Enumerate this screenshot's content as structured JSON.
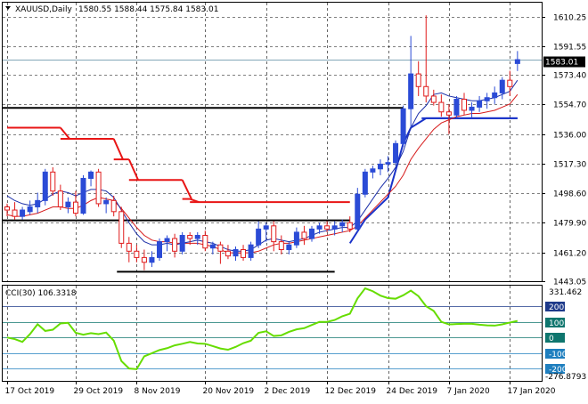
{
  "header": {
    "symbol": "XAUUSD,Daily",
    "ohlc": "1580.55 1588.44 1575.84 1583.01",
    "current_price": "1583.01"
  },
  "indicator": {
    "label": "CCI(30) 106.3318",
    "scale_max_label": "331.462",
    "scale_min_label": "-276.8793",
    "levels": [
      200,
      100,
      0,
      -100,
      -200
    ],
    "level_colors": {
      "200": "#1e3a8a",
      "100": "#0f766e",
      "0": "#0f766e",
      "-100": "#1f7fbf",
      "-200": "#1f7fbf"
    }
  },
  "colors": {
    "bull": "#2b4bd6",
    "bear": "#e01b1b",
    "ma_blue": "#1a2ea8",
    "ma_red": "#d61b1b",
    "stop_red": "#e81515",
    "stop_blue": "#1a33c9",
    "levels": "#000000",
    "cci": "#66dd00",
    "grid": "#000000",
    "price_line": "#5a8aa0"
  },
  "chart_data": {
    "type": "candlestick",
    "title": "XAUUSD,Daily",
    "y_ticks": [
      1610.25,
      1591.55,
      1573.4,
      1554.7,
      1536.0,
      1517.3,
      1498.6,
      1479.9,
      1461.2,
      1443.05
    ],
    "y_tick_labels": [
      "1610.25",
      "1591.55",
      "1573.40",
      "1554.70",
      "1536.00",
      "1517.30",
      "1498.60",
      "1479.90",
      "1461.20",
      "1443.05"
    ],
    "ylim": [
      1443.05,
      1619.0
    ],
    "x_labels": [
      {
        "i": 0,
        "label": "17 Oct 2019"
      },
      {
        "i": 9,
        "label": "29 Oct 2019"
      },
      {
        "i": 17,
        "label": "8 Nov 2019"
      },
      {
        "i": 26,
        "label": "20 Nov 2019"
      },
      {
        "i": 34,
        "label": "2 Dec 2019"
      },
      {
        "i": 42,
        "label": "12 Dec 2019"
      },
      {
        "i": 50,
        "label": "24 Dec 2019"
      },
      {
        "i": 58,
        "label": "7 Jan 2020"
      },
      {
        "i": 66,
        "label": "17 Jan 2020"
      }
    ],
    "candles": [
      [
        1490,
        1492,
        1484,
        1488
      ],
      [
        1488,
        1493,
        1482,
        1484
      ],
      [
        1484,
        1490,
        1482,
        1488
      ],
      [
        1487,
        1494,
        1485,
        1490
      ],
      [
        1490,
        1499,
        1486,
        1494
      ],
      [
        1494,
        1514,
        1491,
        1512
      ],
      [
        1512,
        1515,
        1497,
        1500
      ],
      [
        1500,
        1504,
        1488,
        1490
      ],
      [
        1490,
        1496,
        1486,
        1493
      ],
      [
        1493,
        1500,
        1484,
        1486
      ],
      [
        1486,
        1510,
        1485,
        1508
      ],
      [
        1508,
        1513,
        1503,
        1512
      ],
      [
        1512,
        1514,
        1490,
        1492
      ],
      [
        1492,
        1496,
        1486,
        1494
      ],
      [
        1494,
        1497,
        1484,
        1487
      ],
      [
        1487,
        1490,
        1464,
        1467
      ],
      [
        1467,
        1471,
        1455,
        1462
      ],
      [
        1462,
        1466,
        1455,
        1458
      ],
      [
        1458,
        1463,
        1450,
        1455
      ],
      [
        1455,
        1462,
        1452,
        1458
      ],
      [
        1458,
        1470,
        1456,
        1468
      ],
      [
        1468,
        1472,
        1462,
        1470
      ],
      [
        1470,
        1473,
        1458,
        1462
      ],
      [
        1462,
        1474,
        1460,
        1472
      ],
      [
        1472,
        1474,
        1466,
        1470
      ],
      [
        1470,
        1474,
        1466,
        1472
      ],
      [
        1472,
        1475,
        1462,
        1464
      ],
      [
        1464,
        1468,
        1460,
        1466
      ],
      [
        1466,
        1468,
        1454,
        1462
      ],
      [
        1462,
        1466,
        1457,
        1459
      ],
      [
        1459,
        1465,
        1456,
        1463
      ],
      [
        1463,
        1466,
        1456,
        1458
      ],
      [
        1458,
        1468,
        1456,
        1466
      ],
      [
        1466,
        1481,
        1464,
        1476
      ],
      [
        1476,
        1480,
        1468,
        1478
      ],
      [
        1478,
        1481,
        1462,
        1468
      ],
      [
        1468,
        1472,
        1460,
        1463
      ],
      [
        1463,
        1468,
        1460,
        1466
      ],
      [
        1466,
        1477,
        1464,
        1474
      ],
      [
        1474,
        1478,
        1466,
        1470
      ],
      [
        1470,
        1478,
        1468,
        1476
      ],
      [
        1476,
        1480,
        1473,
        1478
      ],
      [
        1478,
        1481,
        1474,
        1476
      ],
      [
        1476,
        1481,
        1472,
        1478
      ],
      [
        1478,
        1482,
        1474,
        1480
      ],
      [
        1480,
        1484,
        1474,
        1476
      ],
      [
        1476,
        1502,
        1474,
        1498
      ],
      [
        1498,
        1514,
        1496,
        1512
      ],
      [
        1512,
        1516,
        1508,
        1514
      ],
      [
        1514,
        1520,
        1510,
        1517
      ],
      [
        1517,
        1522,
        1512,
        1518
      ],
      [
        1518,
        1532,
        1516,
        1530
      ],
      [
        1530,
        1554,
        1528,
        1552
      ],
      [
        1552,
        1598,
        1540,
        1574
      ],
      [
        1574,
        1582,
        1560,
        1566
      ],
      [
        1566,
        1611,
        1556,
        1560
      ],
      [
        1560,
        1564,
        1554,
        1556
      ],
      [
        1556,
        1561,
        1547,
        1550
      ],
      [
        1550,
        1555,
        1536,
        1548
      ],
      [
        1548,
        1560,
        1546,
        1558
      ],
      [
        1558,
        1562,
        1548,
        1551
      ],
      [
        1551,
        1556,
        1546,
        1553
      ],
      [
        1553,
        1560,
        1550,
        1557
      ],
      [
        1557,
        1562,
        1552,
        1559
      ],
      [
        1559,
        1566,
        1555,
        1562
      ],
      [
        1562,
        1572,
        1558,
        1570
      ],
      [
        1570,
        1576,
        1560,
        1566
      ],
      [
        1580.55,
        1588.44,
        1575.84,
        1583.01
      ]
    ],
    "ma_fast": [
      1497,
      1494,
      1492,
      1491,
      1492,
      1495,
      1498,
      1500,
      1499,
      1497,
      1499,
      1501,
      1501,
      1500,
      1496,
      1488,
      1480,
      1473,
      1468,
      1466,
      1466,
      1467,
      1466,
      1467,
      1468,
      1469,
      1468,
      1467,
      1465,
      1463,
      1462,
      1462,
      1463,
      1466,
      1469,
      1470,
      1469,
      1468,
      1469,
      1470,
      1472,
      1474,
      1475,
      1476,
      1477,
      1477,
      1481,
      1488,
      1495,
      1502,
      1508,
      1515,
      1525,
      1540,
      1549,
      1554,
      1561,
      1562,
      1560,
      1559,
      1558,
      1557,
      1557,
      1558,
      1559,
      1561,
      1563,
      1570
    ],
    "ma_slow": [
      1485,
      1484,
      1484,
      1485,
      1486,
      1488,
      1490,
      1490,
      1489,
      1489,
      1491,
      1494,
      1496,
      1495,
      1494,
      1489,
      1483,
      1477,
      1472,
      1469,
      1468,
      1468,
      1467,
      1467,
      1467,
      1467,
      1466,
      1465,
      1463,
      1461,
      1461,
      1461,
      1461,
      1462,
      1464,
      1466,
      1467,
      1467,
      1468,
      1469,
      1470,
      1471,
      1472,
      1473,
      1474,
      1475,
      1478,
      1483,
      1488,
      1493,
      1498,
      1503,
      1510,
      1520,
      1527,
      1533,
      1539,
      1543,
      1545,
      1547,
      1548,
      1549,
      1549,
      1550,
      1551,
      1553,
      1555,
      1561
    ],
    "stop_red_levels": [
      {
        "from": 0,
        "to": 7,
        "value": 1540
      },
      {
        "from": 7,
        "to": 14,
        "value": 1533
      },
      {
        "from": 14,
        "to": 16,
        "value": 1520
      },
      {
        "from": 16,
        "to": 23,
        "value": 1507
      },
      {
        "from": 23,
        "to": 24,
        "value": 1495
      },
      {
        "from": 24,
        "to": 45,
        "value": 1493
      }
    ],
    "stop_blue_points": [
      [
        45,
        1467
      ],
      [
        47,
        1482
      ],
      [
        50,
        1496
      ],
      [
        52,
        1530
      ],
      [
        53,
        1540
      ],
      [
        55,
        1546
      ],
      [
        59,
        1546
      ],
      [
        67,
        1546
      ]
    ],
    "level_lines": [
      {
        "from": 0,
        "to": 45,
        "value": 1481.5
      },
      {
        "from": 15,
        "to": 43,
        "value": 1449
      },
      {
        "from": 0,
        "to": 52,
        "value": 1552.5
      },
      {
        "from": 55,
        "to": 67,
        "value": 1546
      }
    ],
    "cci": [
      0,
      -10,
      -28,
      22,
      85,
      42,
      50,
      90,
      94,
      30,
      18,
      28,
      22,
      32,
      -20,
      -150,
      -198,
      -202,
      -120,
      -100,
      -80,
      -68,
      -50,
      -40,
      -28,
      -38,
      -40,
      -55,
      -70,
      -78,
      -60,
      -36,
      -20,
      30,
      40,
      10,
      14,
      36,
      52,
      60,
      80,
      100,
      100,
      112,
      136,
      152,
      250,
      314,
      296,
      268,
      252,
      248,
      270,
      300,
      264,
      200,
      170,
      100,
      84,
      86,
      88,
      88,
      82,
      78,
      76,
      84,
      96,
      106.33
    ],
    "cci_ylim": [
      -276.8793,
      331.462
    ]
  }
}
